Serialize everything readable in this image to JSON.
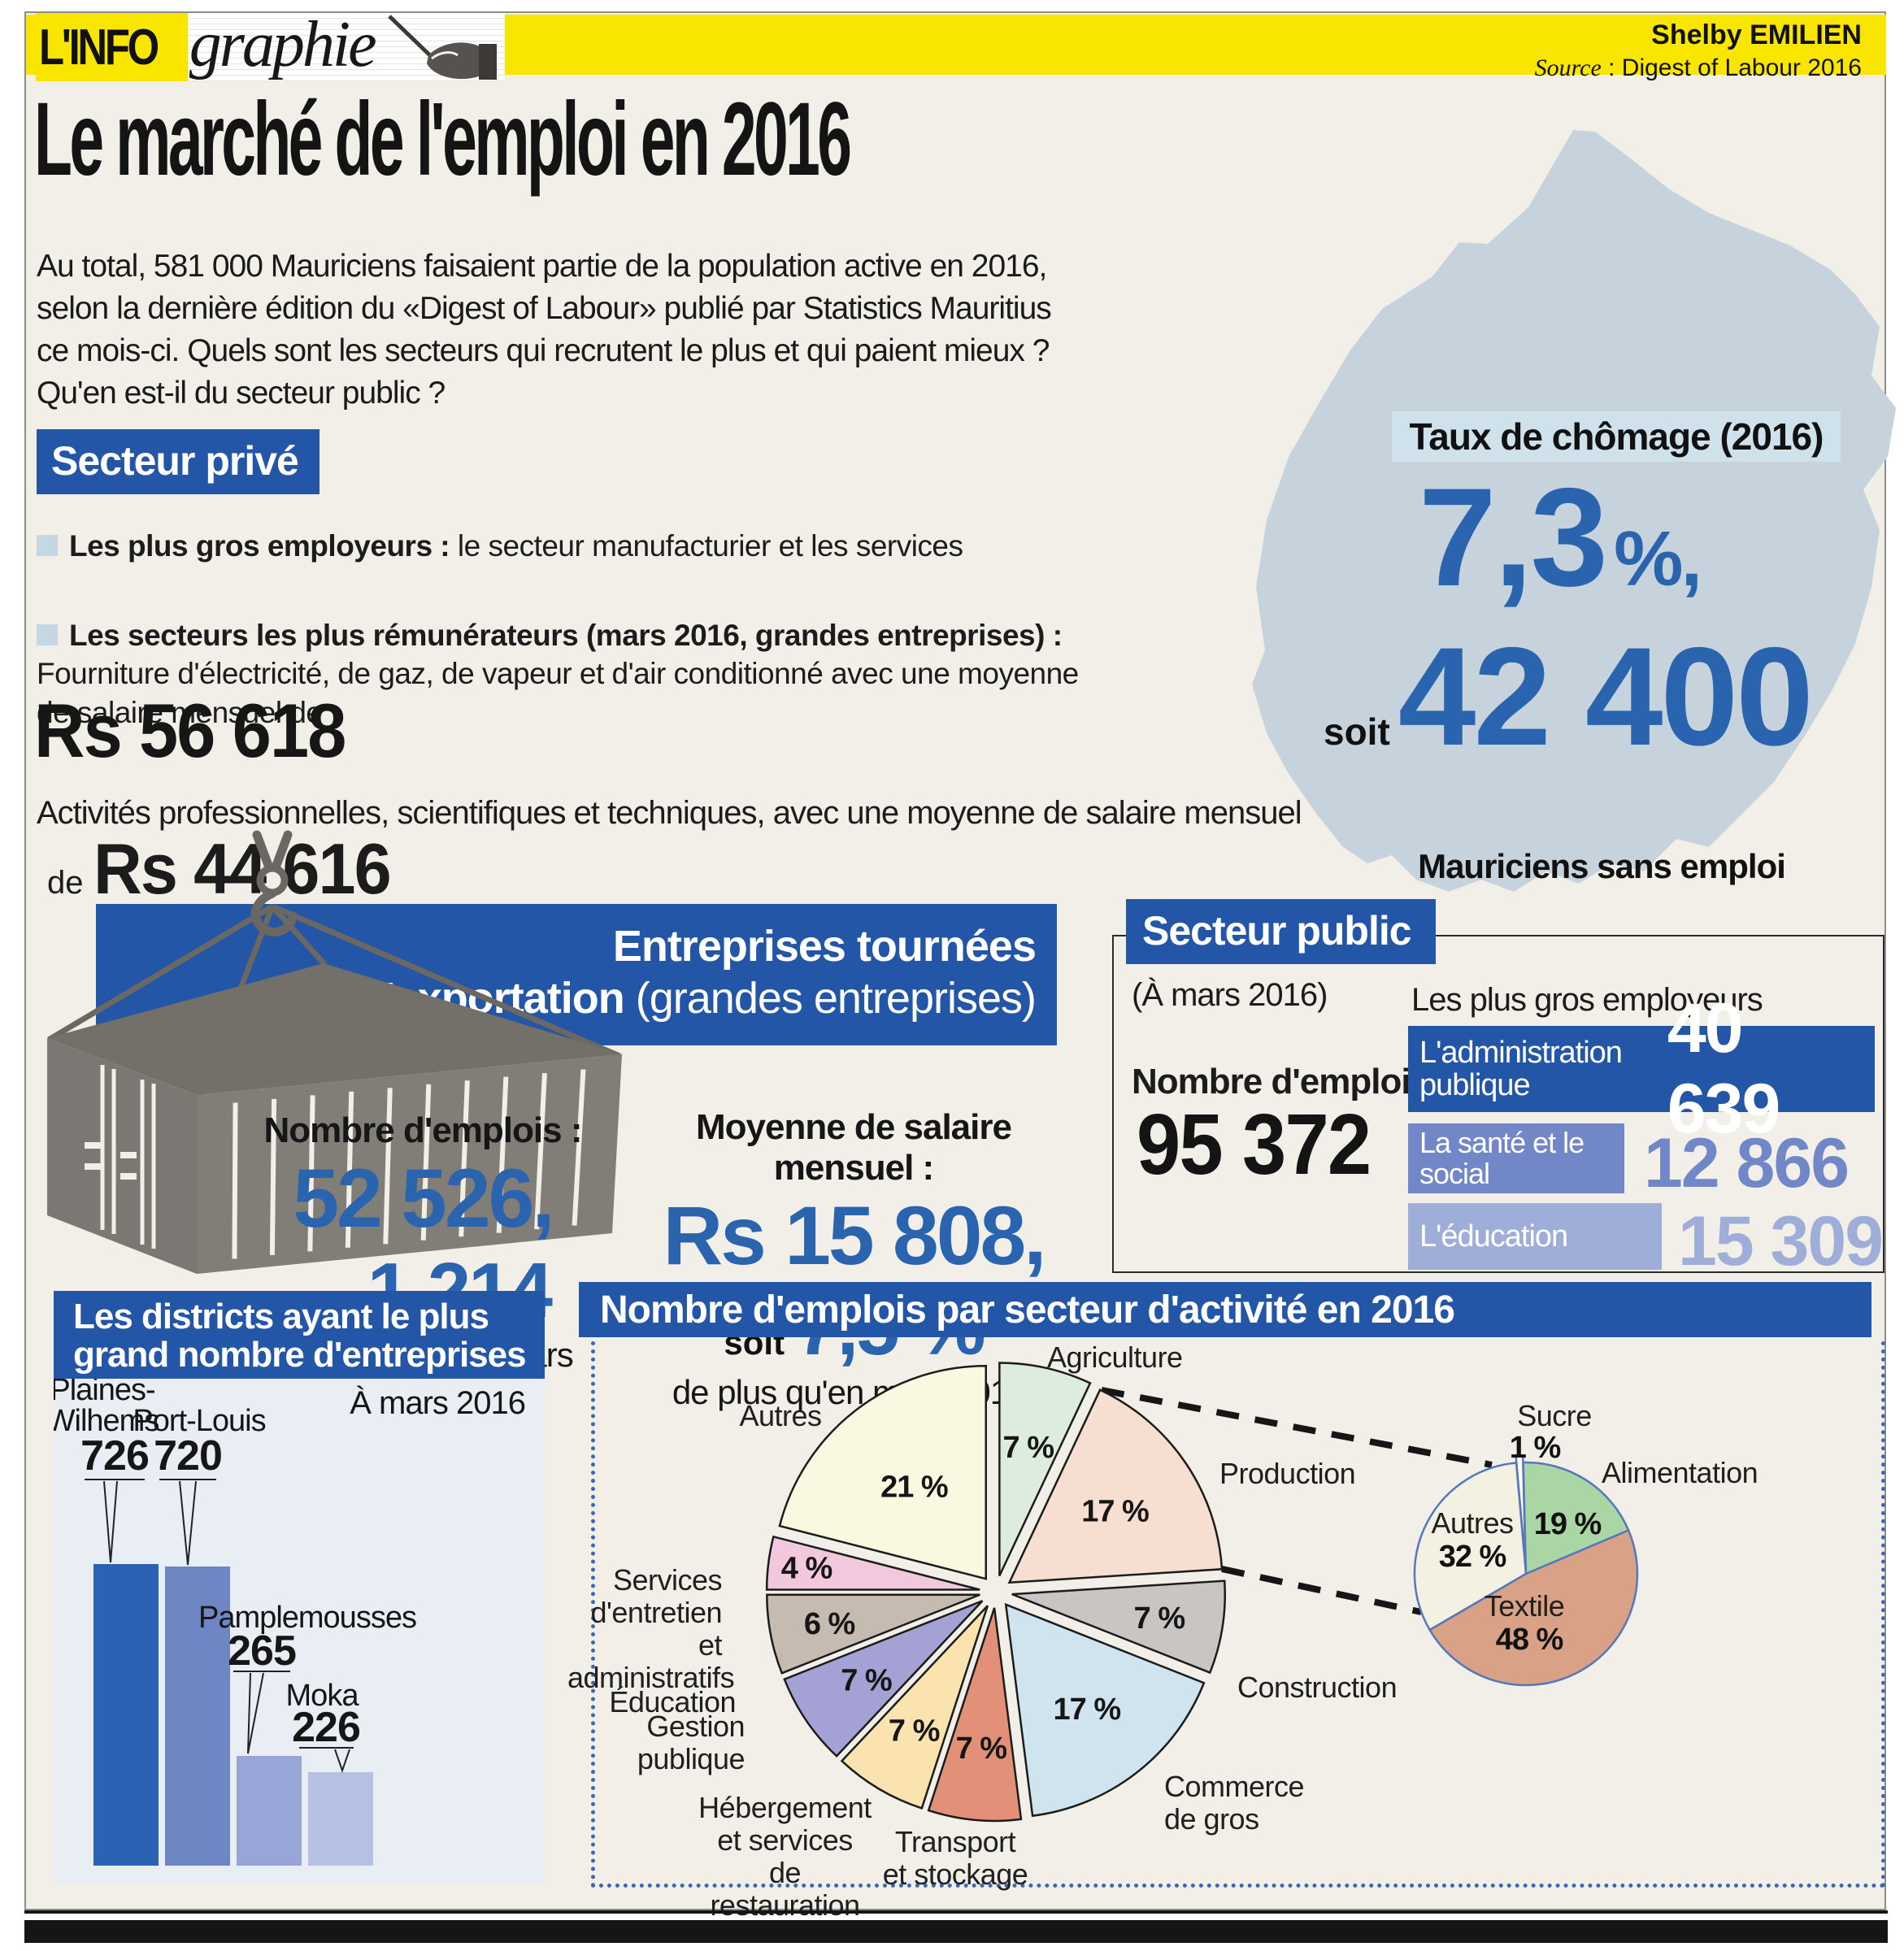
{
  "header": {
    "logo_prefix": "L'INFO",
    "logo_suffix": "graphie",
    "author": "Shelby EMILIEN",
    "source_label": "Source",
    "source_value": " : Digest of Labour 2016"
  },
  "title": "Le marché de l'emploi en 2016",
  "intro": "Au total, 581 000 Mauriciens faisaient partie de la population active en 2016, selon la dernière édition du «Digest of Labour» publié par Statistics Mauritius ce mois-ci. Quels sont les secteurs qui recrutent le plus et qui paient mieux ? Qu'en est-il du secteur public ?",
  "private_sector": {
    "badge": "Secteur privé",
    "bullet1_label": "Les plus gros employeurs :",
    "bullet1_text": " le secteur manufacturier et les services",
    "bullet2_label": "Les secteurs les plus rémunérateurs (mars 2016, grandes entreprises) :",
    "bullet2_text": " Fourniture d'électricité, de gaz, de vapeur et d'air conditionné avec une moyenne de salaire mensuel de",
    "salary1": "Rs 56 618",
    "line2": "Activités professionnelles, scientifiques et techniques, avec une moyenne de salaire mensuel",
    "salary2_prefix": "de",
    "salary2": "Rs 44 616"
  },
  "unemployment": {
    "title": "Taux de chômage (2016)",
    "rate_main": "7,3",
    "rate_unit": "%,",
    "soit": "soit",
    "count": "42 400",
    "caption": "Mauriciens sans emploi"
  },
  "export_section": {
    "title_line1": "Entreprises tournées",
    "title_line2_bold": "vers l'exportation",
    "title_line2_normal": " (grandes entreprises)",
    "jobs_label": "Nombre d'emplois :",
    "jobs_value": "52 526,",
    "jobs_soit": "soit",
    "jobs_delta": "1 214",
    "jobs_note": "de moins qu'en mars 2015.",
    "salary_label": "Moyenne de salaire mensuel :",
    "salary_value": "Rs 15 808,",
    "salary_soit": "soit",
    "salary_delta": "7,5 %",
    "salary_note": "de plus qu'en mars 2016."
  },
  "public_sector": {
    "badge": "Secteur public",
    "note": "(À mars 2016)",
    "jobs_label": "Nombre d'emplois :",
    "jobs_value": "95 372",
    "employers_title": "Les plus gros employeurs",
    "employers": [
      {
        "name": "L'administration publique",
        "value": "40 639",
        "bar_color": "#2356a7",
        "value_color": "#ffffff"
      },
      {
        "name": "La santé et le social",
        "value": "12 866",
        "bar_color": "#7287c8",
        "value_color": "#7287c8"
      },
      {
        "name": "L'éducation",
        "value": "15 309",
        "bar_color": "#9fadd9",
        "value_color": "#9fadd9"
      }
    ]
  },
  "chart_data": [
    {
      "type": "bar",
      "title": "Les districts ayant le plus grand nombre d'entreprises",
      "subtitle": "À mars 2016",
      "categories": [
        "Plaines-Wilhems",
        "Port-Louis",
        "Pamplemousses",
        "Moka"
      ],
      "values": [
        726,
        720,
        265,
        226
      ],
      "bar_colors": [
        "#2a62b4",
        "#6e86c4",
        "#97a6d6",
        "#b6c0e2"
      ],
      "ylim": [
        0,
        760
      ],
      "grid": false,
      "legend": false
    },
    {
      "type": "pie",
      "title": "Nombre d'emplois par secteur d'activité en 2016",
      "labels": [
        "Agriculture",
        "Production",
        "Construction",
        "Commerce de gros",
        "Transport et stockage",
        "Hébergement et services de restauration",
        "Gestion publique",
        "Éducation",
        "Services d'entretien et administratifs",
        "Autres"
      ],
      "values": [
        7,
        17,
        7,
        17,
        7,
        7,
        7,
        6,
        4,
        21
      ],
      "value_labels": [
        "7 %",
        "17 %",
        "7 %",
        "17 %",
        "7 %",
        "7 %",
        "7 %",
        "6 %",
        "4 %",
        "21 %"
      ],
      "colors": [
        "#ddecdd",
        "#f6dfd0",
        "#c9c5c3",
        "#cfe4ef",
        "#e29078",
        "#fae3ae",
        "#a4a1d5",
        "#c5bbb1",
        "#f2c8de",
        "#fbf8e1"
      ],
      "start_angle_deg": 0,
      "clockwise": true,
      "exploded": true,
      "legend": false
    },
    {
      "type": "pie",
      "linked_slice": "Production",
      "labels": [
        "Sucre",
        "Alimentation",
        "Textile",
        "Autres"
      ],
      "values": [
        1,
        19,
        48,
        32
      ],
      "value_labels": [
        "1 %",
        "19 %",
        "48 %",
        "32 %"
      ],
      "colors": [
        "#fdfcf6",
        "#a9d6a4",
        "#d9a286",
        "#f4f1e3"
      ],
      "start_angle_deg": -5,
      "clockwise": true,
      "exploded": false,
      "legend": false
    }
  ]
}
